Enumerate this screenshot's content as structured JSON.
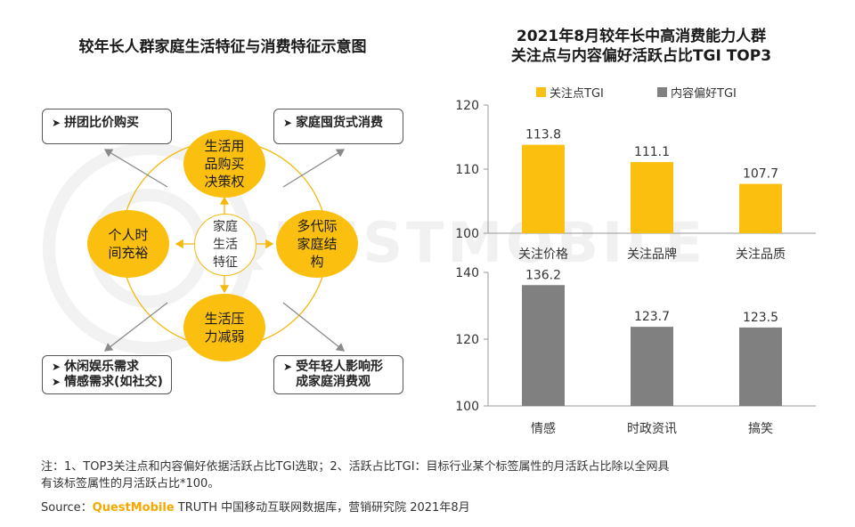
{
  "diagram": {
    "title": "较年长人群家庭生活特征与消费特征示意图",
    "center": "家庭\n生活\n特征",
    "nodes": {
      "top": "生活用\n品购买\n决策权",
      "left": "个人时\n间充裕",
      "right": "多代际\n家庭结\n构",
      "bottom": "生活压\n力减弱"
    },
    "boxes": {
      "top_left": [
        "拼团比价购买"
      ],
      "top_right": [
        "家庭囤货式消费"
      ],
      "bottom_left": [
        "休闲娱乐需求",
        "情感需求(如社交)"
      ],
      "bottom_right": [
        "受年轻人影响形\n成家庭消费观"
      ]
    },
    "bullet_glyph": "➤"
  },
  "chart_header": {
    "title_line1": "2021年8月较年长中高消费能力人群",
    "title_line2": "关注点与内容偏好活跃占比TGI TOP3"
  },
  "legend": [
    {
      "label": "关注点TGI",
      "color": "#fbbf0f"
    },
    {
      "label": "内容偏好TGI",
      "color": "#808080"
    }
  ],
  "chart_data": [
    {
      "type": "bar",
      "name": "关注点TGI",
      "categories": [
        "关注价格",
        "关注品牌",
        "关注品质"
      ],
      "values": [
        113.8,
        111.1,
        107.7
      ],
      "value_labels": [
        "113.8",
        "111.1",
        "107.7"
      ],
      "ylim": [
        100,
        120
      ],
      "yticks": [
        100,
        110,
        120
      ],
      "ytick_labels": [
        "100",
        "110",
        "120"
      ],
      "color": "#fbbf0f"
    },
    {
      "type": "bar",
      "name": "内容偏好TGI",
      "categories": [
        "情感",
        "时政资讯",
        "搞笑"
      ],
      "values": [
        136.2,
        123.7,
        123.5
      ],
      "value_labels": [
        "136.2",
        "123.7",
        "123.5"
      ],
      "ylim": [
        100,
        140
      ],
      "yticks": [
        100,
        120,
        140
      ],
      "ytick_labels": [
        "100",
        "120",
        "140"
      ],
      "color": "#808080"
    }
  ],
  "footer": {
    "note_line1": "注：1、TOP3关注点和内容偏好依据活跃占比TGI选取；2、活跃占比TGI：目标行业某个标签属性的月活跃占比除以全网具",
    "note_line2": "有该标签属性的月活跃占比*100。",
    "source_prefix": "Source：",
    "source_brand": "QuestMobile",
    "source_rest": " TRUTH 中国移动互联网数据库，营销研究院 2021年8月"
  },
  "watermark": "QUESTMOBILE"
}
